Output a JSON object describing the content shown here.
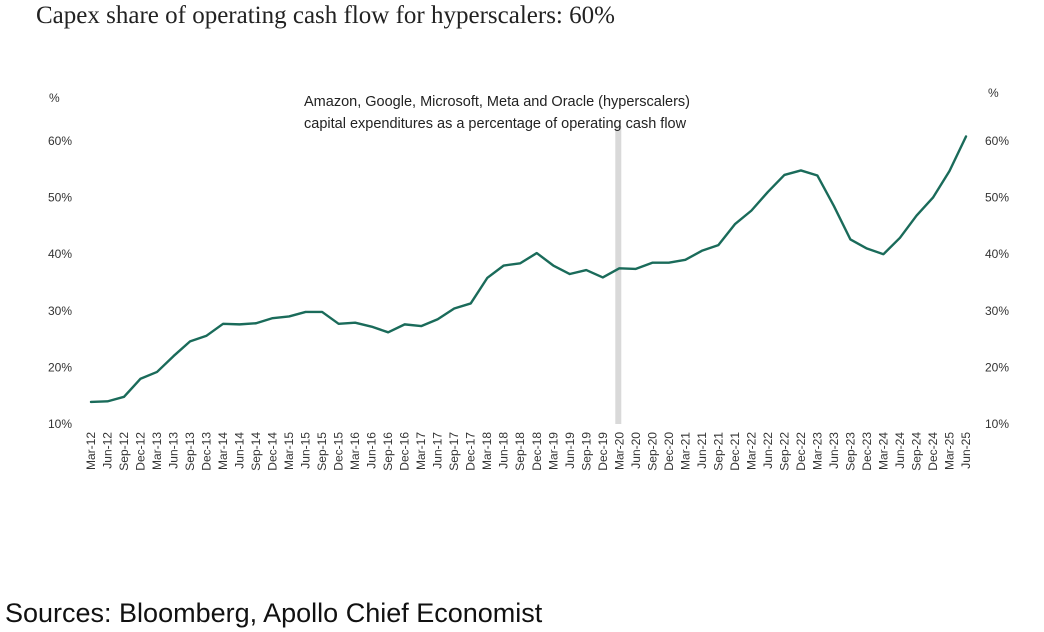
{
  "header": {
    "title": "Capex share of operating cash flow for hyperscalers: 60%"
  },
  "footer": {
    "source": "Sources: Bloomberg, Apollo Chief Economist"
  },
  "chart_data": {
    "type": "line",
    "unit_label_left": "%",
    "unit_label_right": "%",
    "annotation": [
      "Amazon, Google, Microsoft, Meta and Oracle (hyperscalers)",
      "capital expenditures as a percentage of operating cash flow"
    ],
    "marker_category": "Mar-20",
    "colors": {
      "line": "#1a6b5a",
      "marker_band": "#d9d9d9"
    },
    "ylim": [
      10,
      60
    ],
    "yticks": [
      10,
      20,
      30,
      40,
      50,
      60
    ],
    "ytick_labels": [
      "10%",
      "20%",
      "30%",
      "40%",
      "50%",
      "60%"
    ],
    "categories": [
      "Mar-12",
      "Jun-12",
      "Sep-12",
      "Dec-12",
      "Mar-13",
      "Jun-13",
      "Sep-13",
      "Dec-13",
      "Mar-14",
      "Jun-14",
      "Sep-14",
      "Dec-14",
      "Mar-15",
      "Jun-15",
      "Sep-15",
      "Dec-15",
      "Mar-16",
      "Jun-16",
      "Sep-16",
      "Dec-16",
      "Mar-17",
      "Jun-17",
      "Sep-17",
      "Dec-17",
      "Mar-18",
      "Jun-18",
      "Sep-18",
      "Dec-18",
      "Mar-19",
      "Jun-19",
      "Sep-19",
      "Dec-19",
      "Mar-20",
      "Jun-20",
      "Sep-20",
      "Dec-20",
      "Mar-21",
      "Jun-21",
      "Sep-21",
      "Dec-21",
      "Mar-22",
      "Jun-22",
      "Sep-22",
      "Dec-22",
      "Mar-23",
      "Jun-23",
      "Sep-23",
      "Dec-23",
      "Mar-24",
      "Jun-24",
      "Sep-24",
      "Dec-24",
      "Mar-25",
      "Jun-25"
    ],
    "values": [
      13.9,
      14.0,
      14.8,
      18.0,
      19.2,
      22.0,
      24.6,
      25.6,
      27.7,
      27.6,
      27.8,
      28.7,
      29.0,
      29.8,
      29.8,
      27.7,
      27.9,
      27.2,
      26.2,
      27.6,
      27.3,
      28.5,
      30.4,
      31.3,
      35.8,
      38.0,
      38.4,
      40.2,
      38.0,
      36.5,
      37.2,
      35.9,
      37.5,
      37.4,
      38.5,
      38.5,
      39.0,
      40.6,
      41.6,
      45.3,
      47.7,
      51.0,
      54.0,
      54.8,
      53.9,
      48.5,
      42.6,
      41.0,
      40.0,
      42.9,
      46.8,
      50.0,
      54.7,
      60.8
    ]
  }
}
